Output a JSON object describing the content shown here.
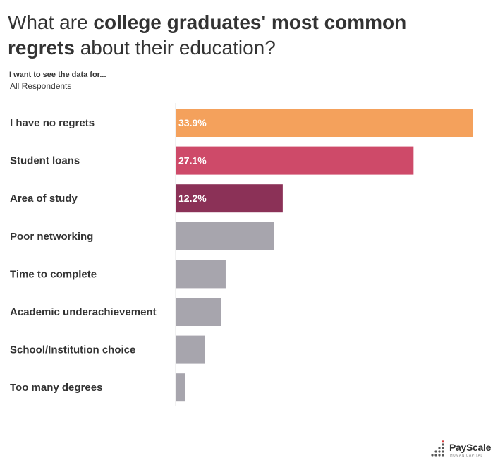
{
  "title": {
    "part1": "What are ",
    "bold1": "college graduates' most common",
    "bold2": "regrets",
    "part2": " about their education?"
  },
  "filter": {
    "label": "I want to see the data for...",
    "value": "All Respondents"
  },
  "brand": {
    "name": "PayScale",
    "tagline": "HUMAN CAPITAL"
  },
  "chart_data": {
    "type": "bar",
    "orientation": "horizontal",
    "title": "",
    "xlabel": "",
    "ylabel": "",
    "categories": [
      "I have no regrets",
      "Student loans",
      "Area of study",
      "Poor networking",
      "Time to complete",
      "Academic underachievement",
      "School/Institution choice",
      "Too many degrees"
    ],
    "values": [
      33.9,
      27.1,
      12.2,
      11.2,
      5.7,
      5.2,
      3.3,
      1.1
    ],
    "data_labels": [
      "33.9%",
      "27.1%",
      "12.2%",
      "",
      "",
      "",
      "",
      ""
    ],
    "colors": [
      "#F4A15C",
      "#CE4A69",
      "#8B3157",
      "#A7A5AD",
      "#A7A5AD",
      "#A7A5AD",
      "#A7A5AD",
      "#A7A5AD"
    ],
    "xlim": [
      0,
      33.9
    ],
    "grid": false,
    "legend": "none"
  }
}
